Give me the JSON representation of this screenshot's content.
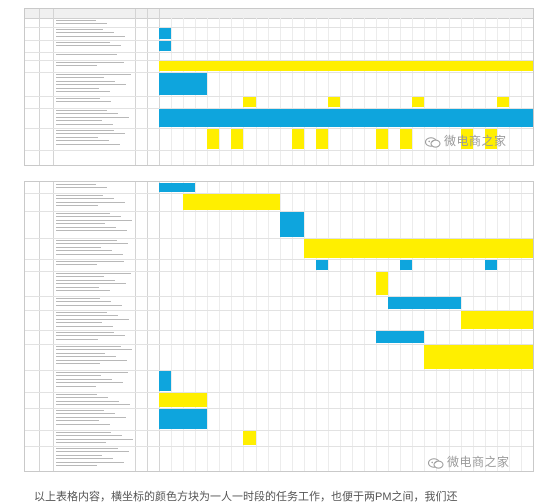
{
  "watermark": {
    "text": "微电商之家",
    "icon": "wechat-chat-bubbles-icon"
  },
  "caption": {
    "text": "以上表格内容，横坐标的颜色方块为一人一时段的任务工作，也便于两PM之间，我们还"
  },
  "colors": {
    "yellow": "#ffef00",
    "blue": "#0ea5dd",
    "grid": "#ececec",
    "header": "#f0f0f0"
  },
  "panel1": {
    "header_label": "",
    "rows": [
      {
        "h": 9,
        "bars": []
      },
      {
        "h": 13,
        "bars": [
          {
            "c": "blue",
            "s": 0,
            "e": 1
          }
        ]
      },
      {
        "h": 12,
        "bars": [
          {
            "c": "blue",
            "s": 0,
            "e": 1
          }
        ]
      },
      {
        "h": 8,
        "bars": []
      },
      {
        "h": 12,
        "bars": [
          {
            "c": "yellow",
            "s": 0,
            "e": 31
          }
        ]
      },
      {
        "h": 24,
        "bars": [
          {
            "c": "blue",
            "s": 0,
            "e": 4
          }
        ]
      },
      {
        "h": 12,
        "bars": [
          {
            "c": "yellow",
            "s": 7,
            "e": 8
          },
          {
            "c": "yellow",
            "s": 14,
            "e": 15
          },
          {
            "c": "yellow",
            "s": 21,
            "e": 22
          },
          {
            "c": "yellow",
            "s": 28,
            "e": 29
          }
        ]
      },
      {
        "h": 20,
        "bars": [
          {
            "c": "blue",
            "s": 0,
            "e": 31
          }
        ]
      },
      {
        "h": 22,
        "bars": [
          {
            "c": "yellow",
            "s": 4,
            "e": 5
          },
          {
            "c": "yellow",
            "s": 6,
            "e": 7
          },
          {
            "c": "yellow",
            "s": 11,
            "e": 12
          },
          {
            "c": "yellow",
            "s": 13,
            "e": 14
          },
          {
            "c": "yellow",
            "s": 18,
            "e": 19
          },
          {
            "c": "yellow",
            "s": 20,
            "e": 21
          },
          {
            "c": "yellow",
            "s": 25,
            "e": 26
          },
          {
            "c": "yellow",
            "s": 27,
            "e": 28
          }
        ]
      }
    ]
  },
  "panel2": {
    "rows": [
      {
        "h": 11,
        "bars": [
          {
            "c": "blue",
            "s": 0,
            "e": 3
          }
        ]
      },
      {
        "h": 18,
        "bars": [
          {
            "c": "yellow",
            "s": 2,
            "e": 10
          }
        ]
      },
      {
        "h": 27,
        "bars": [
          {
            "c": "blue",
            "s": 10,
            "e": 12
          }
        ]
      },
      {
        "h": 21,
        "bars": [
          {
            "c": "yellow",
            "s": 12,
            "e": 31
          }
        ]
      },
      {
        "h": 12,
        "bars": [
          {
            "c": "blue",
            "s": 13,
            "e": 14
          },
          {
            "c": "blue",
            "s": 20,
            "e": 21
          },
          {
            "c": "blue",
            "s": 27,
            "e": 28
          }
        ]
      },
      {
        "h": 25,
        "bars": [
          {
            "c": "yellow",
            "s": 18,
            "e": 19
          }
        ]
      },
      {
        "h": 14,
        "bars": [
          {
            "c": "blue",
            "s": 19,
            "e": 25
          }
        ]
      },
      {
        "h": 20,
        "bars": [
          {
            "c": "yellow",
            "s": 25,
            "e": 31
          }
        ]
      },
      {
        "h": 14,
        "bars": [
          {
            "c": "blue",
            "s": 18,
            "e": 22
          }
        ]
      },
      {
        "h": 26,
        "bars": [
          {
            "c": "yellow",
            "s": 22,
            "e": 31
          }
        ]
      },
      {
        "h": 22,
        "bars": [
          {
            "c": "blue",
            "s": 0,
            "e": 1
          }
        ]
      },
      {
        "h": 16,
        "bars": [
          {
            "c": "yellow",
            "s": 0,
            "e": 4
          }
        ]
      },
      {
        "h": 22,
        "bars": [
          {
            "c": "blue",
            "s": 0,
            "e": 4
          }
        ]
      },
      {
        "h": 16,
        "bars": [
          {
            "c": "yellow",
            "s": 7,
            "e": 8
          }
        ]
      },
      {
        "h": 25,
        "bars": []
      }
    ]
  }
}
